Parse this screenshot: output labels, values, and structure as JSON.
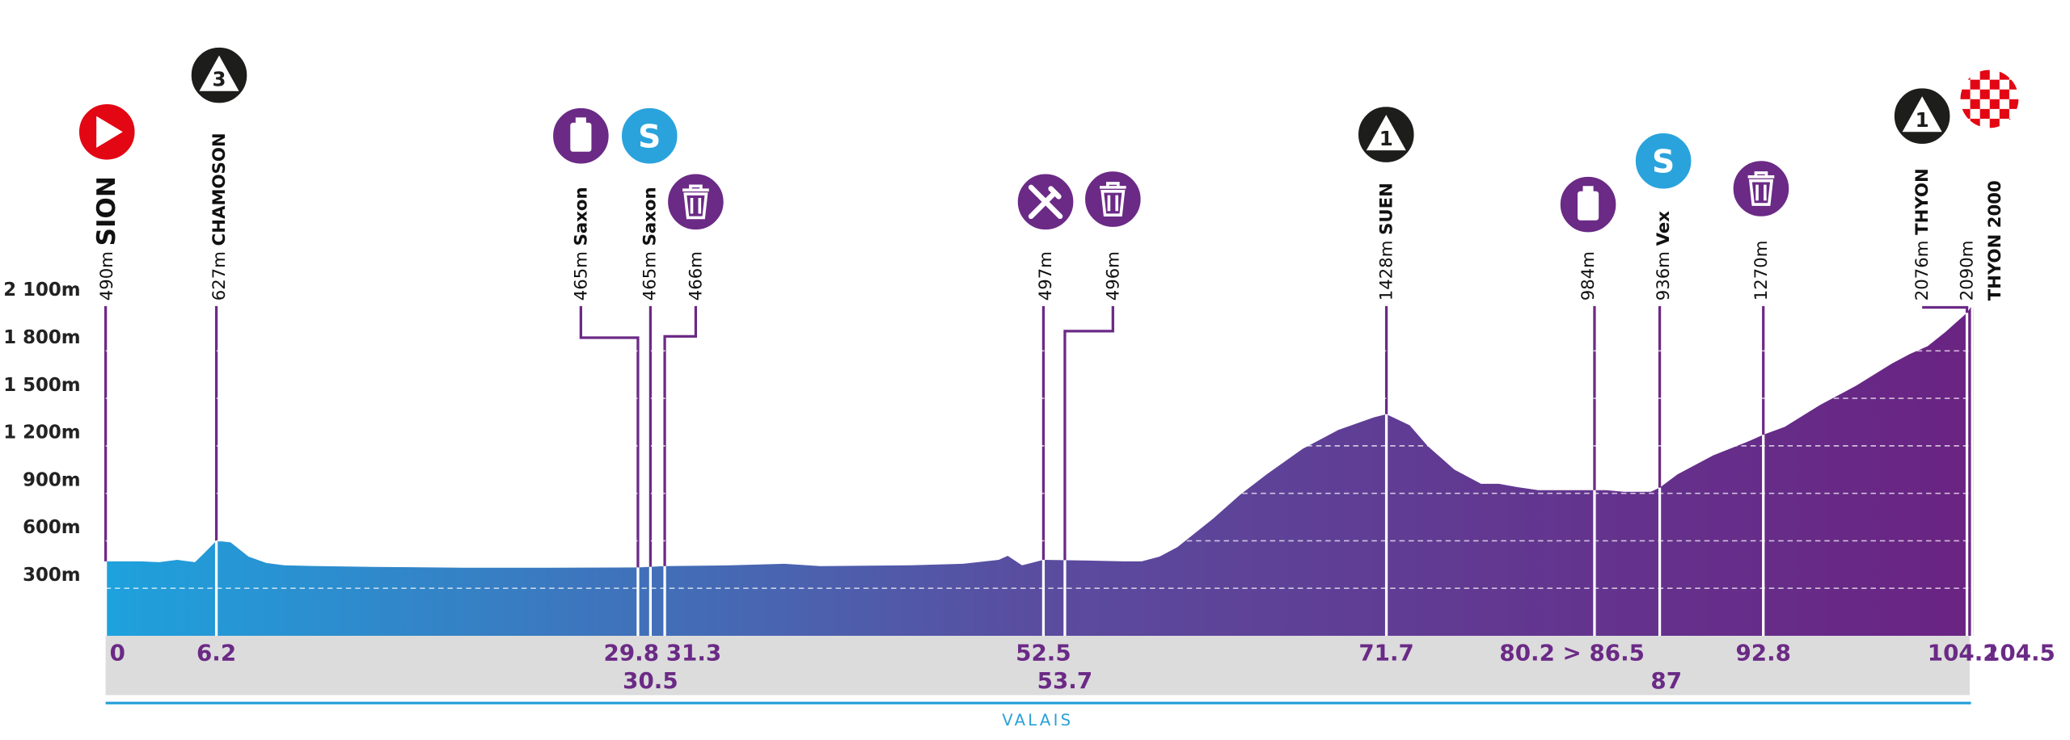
{
  "chart_data": {
    "type": "elevation-profile",
    "x": [
      0,
      2,
      3,
      4,
      5,
      5.5,
      6.2,
      7,
      8,
      9,
      10,
      12,
      15,
      20,
      25,
      29.8,
      31.3,
      35,
      38,
      40,
      45,
      48,
      50,
      50.5,
      51.3,
      52.5,
      55,
      57,
      58,
      59,
      60,
      62,
      63.5,
      65,
      67,
      69,
      71,
      71.7,
      73,
      74,
      75.5,
      77,
      78,
      79,
      80.2,
      82,
      84,
      85,
      86.5,
      87,
      88,
      90,
      92,
      92.8,
      94,
      96,
      98,
      100,
      101,
      102,
      103,
      104.2,
      104.5
    ],
    "values": [
      470,
      470,
      465,
      480,
      465,
      520,
      600,
      590,
      500,
      460,
      445,
      440,
      435,
      430,
      430,
      432,
      440,
      445,
      455,
      440,
      445,
      455,
      480,
      505,
      445,
      480,
      475,
      470,
      470,
      500,
      560,
      740,
      890,
      1020,
      1180,
      1300,
      1380,
      1400,
      1330,
      1200,
      1050,
      960,
      960,
      940,
      920,
      920,
      920,
      910,
      910,
      936,
      1020,
      1140,
      1230,
      1270,
      1320,
      1460,
      1580,
      1720,
      1780,
      1830,
      1920,
      2040,
      2090
    ],
    "xlim": [
      0,
      104.5
    ],
    "ylim": [
      0,
      2100
    ],
    "yticks": [
      {
        "value": 300,
        "label": "300m"
      },
      {
        "value": 600,
        "label": "600m"
      },
      {
        "value": 900,
        "label": "900m"
      },
      {
        "value": 1200,
        "label": "1 200m"
      },
      {
        "value": 1500,
        "label": "1 500m"
      },
      {
        "value": 1800,
        "label": "1 800m"
      },
      {
        "value": 2100,
        "label": "2 100m"
      }
    ],
    "grid": true,
    "fill_gradient": [
      "#1ea2dd",
      "#5a4c9f",
      "#6a2382"
    ],
    "region": "VALAIS",
    "waypoints": [
      {
        "name": "SION",
        "altitude": "490m",
        "km": 0,
        "icon": "start"
      },
      {
        "name": "CHAMOSON",
        "altitude": "627m",
        "km": 6.2,
        "icon": "climb",
        "category": 3
      },
      {
        "name": "Saxon",
        "altitude": "465m",
        "km": 29.8,
        "icon": "bottle"
      },
      {
        "name": "Saxon",
        "altitude": "465m",
        "km": 30.5,
        "icon": "sprint",
        "icon_text": "S"
      },
      {
        "altitude": "466m",
        "km": 31.3,
        "icon": "waste"
      },
      {
        "altitude": "497m",
        "km": 52.5,
        "icon": "feed"
      },
      {
        "altitude": "496m",
        "km": 53.7,
        "icon": "waste"
      },
      {
        "name": "SUEN",
        "altitude": "1428m",
        "km": 71.7,
        "icon": "climb",
        "category": 1
      },
      {
        "altitude": "984m",
        "km_label": "80.2 > 86.5",
        "km_range": [
          80.2,
          86.5
        ],
        "icon": "bottle"
      },
      {
        "name": "Vex",
        "altitude": "936m",
        "km": 87,
        "icon": "sprint",
        "icon_text": "S"
      },
      {
        "altitude": "1270m",
        "km": 92.8,
        "icon": "waste"
      },
      {
        "name": "THYON",
        "altitude": "2076m",
        "km": 104.2,
        "icon": "climb",
        "category": 1
      },
      {
        "name": "THYON 2000",
        "altitude": "2090m",
        "km": 104.5,
        "icon": "finish"
      }
    ]
  }
}
